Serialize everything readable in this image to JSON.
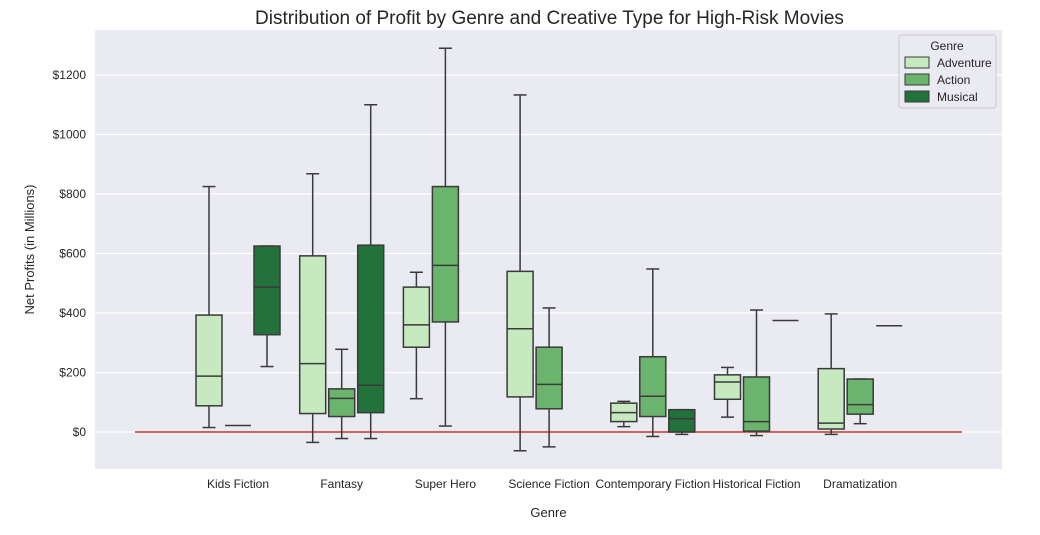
{
  "chart_data": {
    "type": "boxplot",
    "title": "Distribution of Profit by Genre and Creative Type for High-Risk Movies",
    "xlabel": "Genre",
    "ylabel": "Net Profits (in Millions)",
    "ylim": [
      -125,
      1340
    ],
    "yticks": [
      {
        "value": 0,
        "label": "$0"
      },
      {
        "value": 200,
        "label": "$200"
      },
      {
        "value": 400,
        "label": "$400"
      },
      {
        "value": 600,
        "label": "$600"
      },
      {
        "value": 800,
        "label": "$800"
      },
      {
        "value": 1000,
        "label": "$1000"
      },
      {
        "value": 1200,
        "label": "$1200"
      }
    ],
    "categories": [
      "Kids Fiction",
      "Fantasy",
      "Super Hero",
      "Science Fiction",
      "Contemporary Fiction",
      "Historical Fiction",
      "Dramatization"
    ],
    "reference_line": {
      "value": 0,
      "color": "#c0392b"
    },
    "legend": {
      "title": "Genre",
      "placement": "top-right"
    },
    "grid": true,
    "series": [
      {
        "name": "Adventure",
        "color": "#c7e9c0",
        "boxes": [
          {
            "min": 15,
            "q1": 88,
            "median": 188,
            "q3": 393,
            "max": 825
          },
          {
            "min": -35,
            "q1": 62,
            "median": 230,
            "q3": 592,
            "max": 868
          },
          {
            "min": 112,
            "q1": 285,
            "median": 360,
            "q3": 487,
            "max": 537
          },
          {
            "min": -63,
            "q1": 118,
            "median": 347,
            "q3": 540,
            "max": 1133
          },
          {
            "min": 18,
            "q1": 35,
            "median": 65,
            "q3": 97,
            "max": 103
          },
          {
            "min": 50,
            "q1": 110,
            "median": 168,
            "q3": 192,
            "max": 217
          },
          {
            "min": -8,
            "q1": 10,
            "median": 30,
            "q3": 213,
            "max": 397
          }
        ]
      },
      {
        "name": "Action",
        "color": "#6ab46e",
        "boxes": [
          {
            "min": 22,
            "q1": 22,
            "median": 22,
            "q3": 22,
            "max": 22
          },
          {
            "min": -22,
            "q1": 52,
            "median": 113,
            "q3": 145,
            "max": 278
          },
          {
            "min": 20,
            "q1": 370,
            "median": 560,
            "q3": 825,
            "max": 1290
          },
          {
            "min": -50,
            "q1": 78,
            "median": 160,
            "q3": 285,
            "max": 417
          },
          {
            "min": -15,
            "q1": 52,
            "median": 120,
            "q3": 253,
            "max": 548
          },
          {
            "min": -12,
            "q1": 3,
            "median": 35,
            "q3": 185,
            "max": 410
          },
          {
            "min": 28,
            "q1": 60,
            "median": 92,
            "q3": 178,
            "max": 178
          }
        ]
      },
      {
        "name": "Musical",
        "color": "#23723c",
        "boxes": [
          {
            "min": 220,
            "q1": 327,
            "median": 487,
            "q3": 625,
            "max": 625
          },
          {
            "min": -22,
            "q1": 65,
            "median": 157,
            "q3": 628,
            "max": 1100
          },
          null,
          null,
          {
            "min": -8,
            "q1": 0,
            "median": 45,
            "q3": 75,
            "max": 75
          },
          {
            "min": 375,
            "q1": 375,
            "median": 375,
            "q3": 375,
            "max": 375
          },
          {
            "min": 357,
            "q1": 357,
            "median": 357,
            "q3": 357,
            "max": 357
          }
        ]
      }
    ]
  }
}
